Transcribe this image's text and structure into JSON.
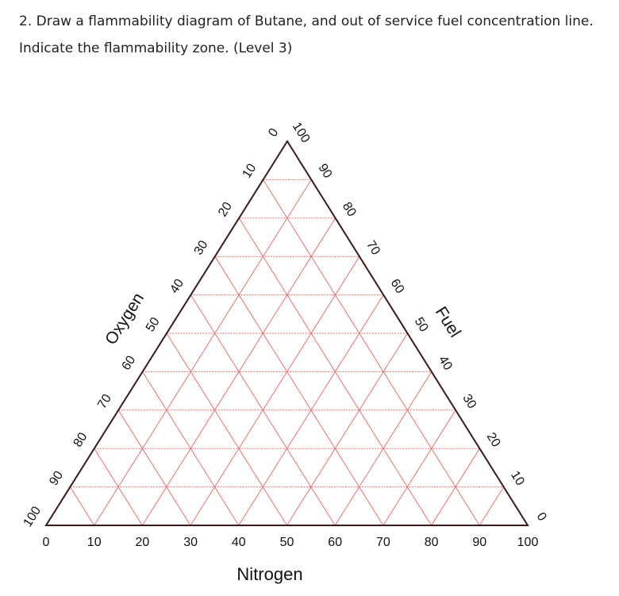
{
  "question": "2. Draw a flammability diagram of Butane, and out of service fuel concentration line. Indicate the flammability zone.  (Level 3)",
  "chart_data": {
    "type": "ternary",
    "bottom_axis": {
      "title": "Nitrogen",
      "ticks": [
        0,
        10,
        20,
        30,
        40,
        50,
        60,
        70,
        80,
        90,
        100
      ]
    },
    "left_axis": {
      "title": "Oxygen",
      "ticks": [
        0,
        10,
        20,
        30,
        40,
        50,
        60,
        70,
        80,
        90,
        100
      ]
    },
    "right_axis": {
      "title": "Fuel",
      "ticks": [
        0,
        10,
        20,
        30,
        40,
        50,
        60,
        70,
        80,
        90,
        100
      ]
    },
    "grid_color": "#e87070",
    "frame_color": "#3a1a1a"
  }
}
